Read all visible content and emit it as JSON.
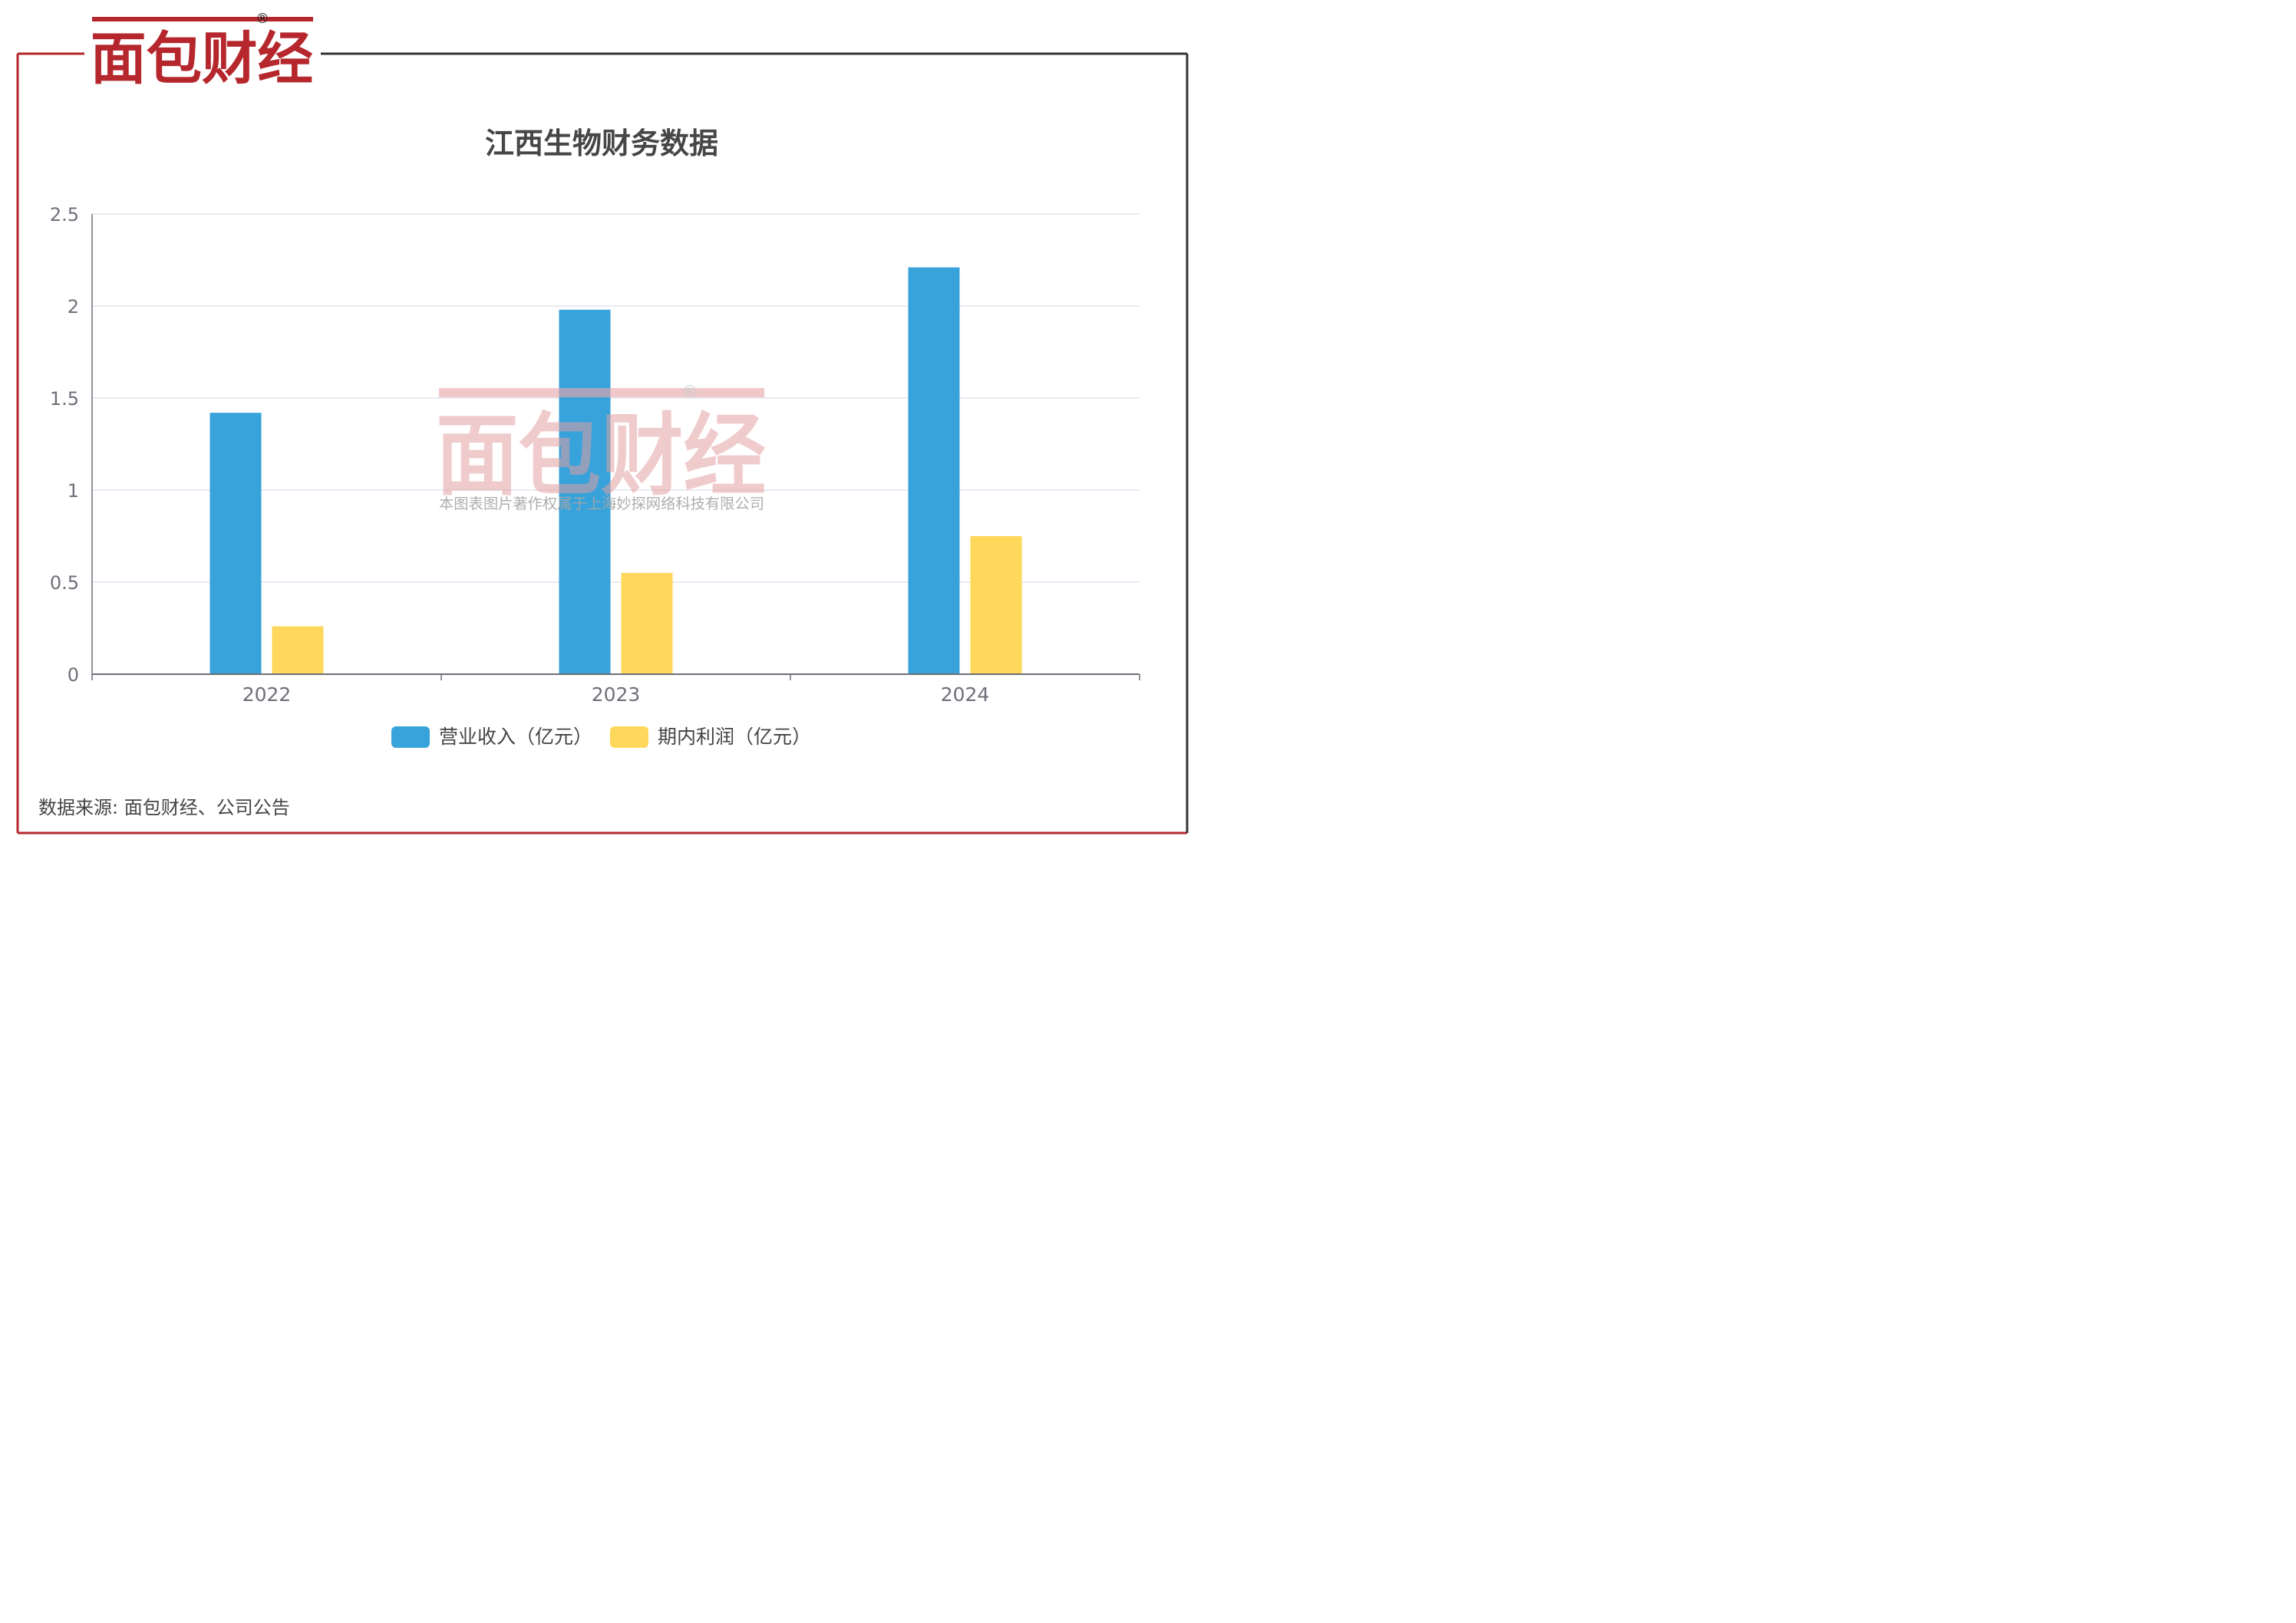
{
  "brand": {
    "name": "面包财经",
    "registered_mark": "®",
    "red_color": "#b5272d",
    "dark_color": "#1f1f1f"
  },
  "watermark": {
    "logo_text": "面包财经",
    "registered_mark": "®",
    "copyright_text": "本图表图片著作权属于上海妙探网络科技有限公司"
  },
  "source_text": "数据来源: 面包财经、公司公告",
  "chart_data": {
    "type": "bar",
    "title": "江西生物财务数据",
    "categories": [
      "2022",
      "2023",
      "2024"
    ],
    "series": [
      {
        "name": "营业收入（亿元）",
        "color": "#38a2db",
        "values": [
          1.42,
          1.98,
          2.21
        ]
      },
      {
        "name": "期内利润（亿元）",
        "color": "#ffd75a",
        "values": [
          0.26,
          0.55,
          0.75
        ]
      }
    ],
    "ylim": [
      0,
      2.5
    ],
    "yticks": [
      "0",
      "0.5",
      "1",
      "1.5",
      "2",
      "2.5"
    ],
    "grid": true,
    "legend_position": "bottom"
  }
}
